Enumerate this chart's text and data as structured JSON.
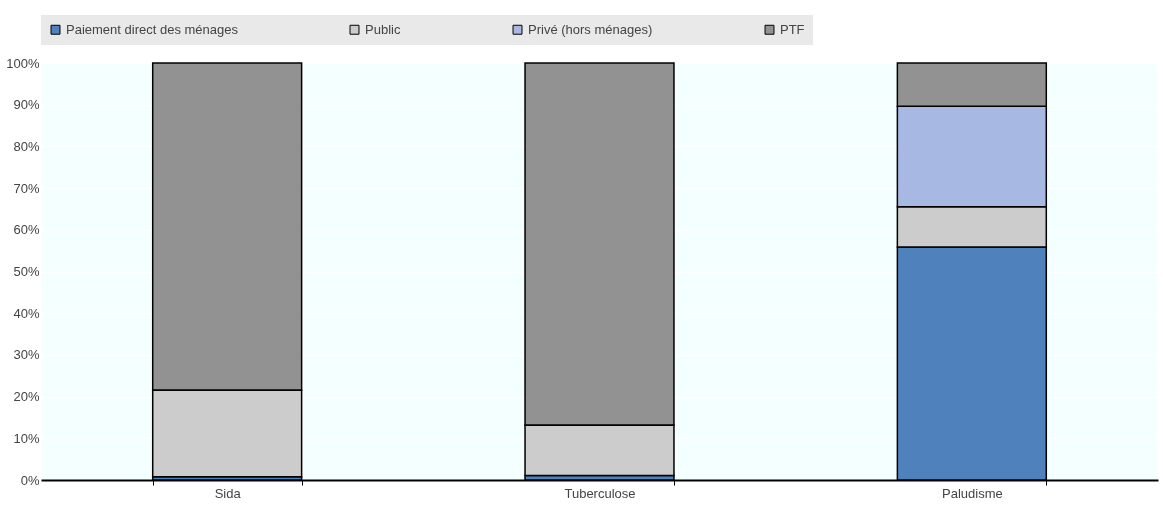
{
  "chart_data": {
    "type": "bar",
    "stacked": true,
    "categories": [
      "Sida",
      "Tuberculose",
      "Paludisme"
    ],
    "series": [
      {
        "name": "Paiement direct des ménages",
        "color": "#4f81bd",
        "values": [
          0.8,
          1.1,
          55.9
        ]
      },
      {
        "name": "Public",
        "color": "#cccccc",
        "values": [
          20.8,
          12.1,
          9.6
        ]
      },
      {
        "name": "Privé (hors ménages)",
        "color": "#a7b9e3",
        "values": [
          0,
          0,
          24.1
        ]
      },
      {
        "name": "PTF",
        "color": "#929292",
        "values": [
          78.4,
          86.8,
          10.4
        ]
      }
    ],
    "ylim": [
      0,
      100
    ],
    "yticks": [
      {
        "value": 0,
        "label": "0%"
      },
      {
        "value": 10,
        "label": "10%"
      },
      {
        "value": 20,
        "label": "20%"
      },
      {
        "value": 30,
        "label": "30%"
      },
      {
        "value": 40,
        "label": "40%"
      },
      {
        "value": 50,
        "label": "50%"
      },
      {
        "value": 60,
        "label": "60%"
      },
      {
        "value": 70,
        "label": "70%"
      },
      {
        "value": 80,
        "label": "80%"
      },
      {
        "value": 90,
        "label": "90%"
      },
      {
        "value": 100,
        "label": "100%"
      }
    ],
    "grid": true,
    "legend": "top"
  }
}
